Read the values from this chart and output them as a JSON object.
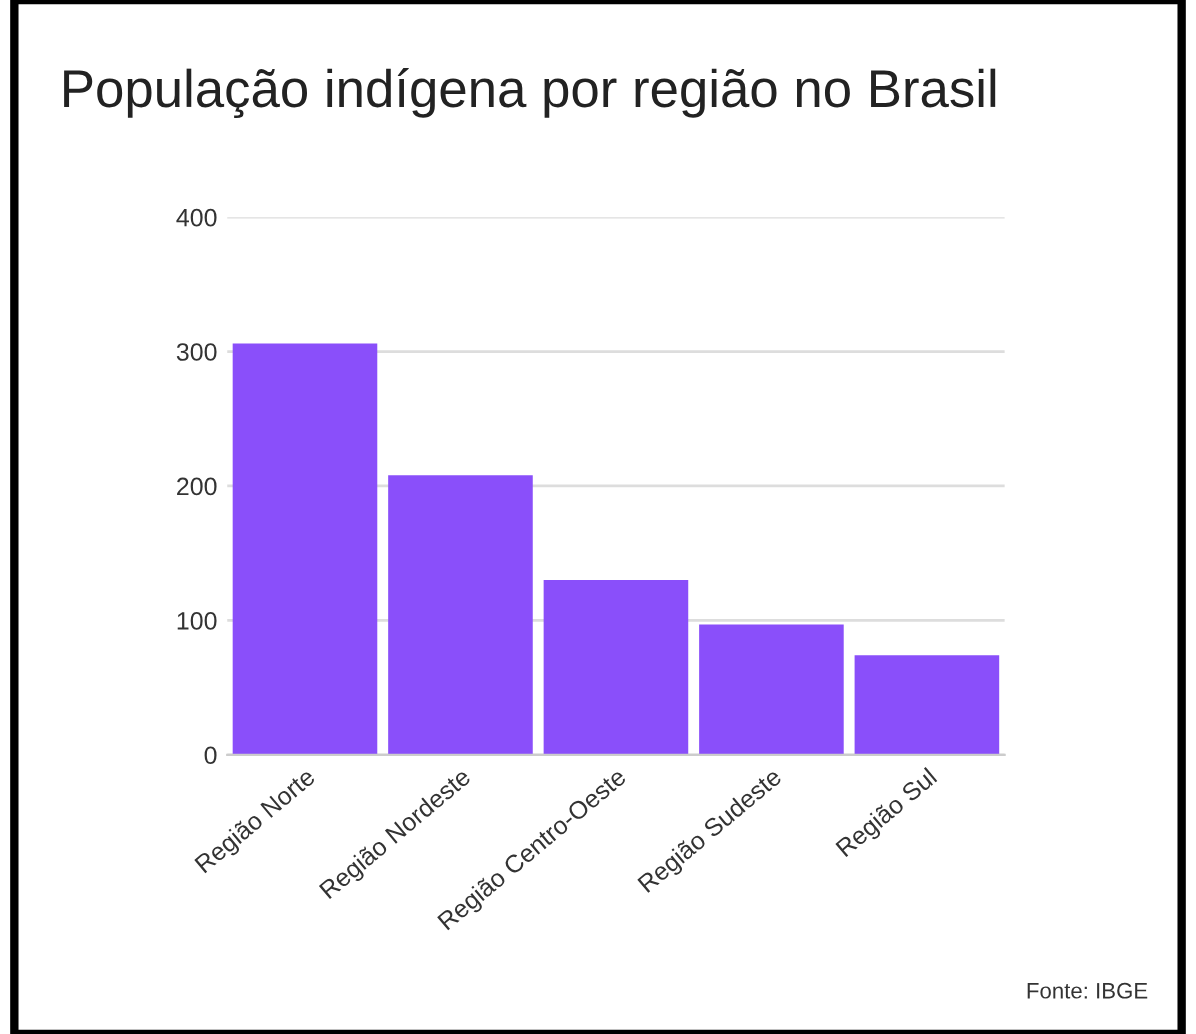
{
  "chart_data": {
    "type": "bar",
    "title": "População indígena por região no Brasil",
    "categories": [
      "Região Norte",
      "Região Nordeste",
      "Região Centro-Oeste",
      "Região Sudeste",
      "Região Sul"
    ],
    "values": [
      306,
      208,
      130,
      97,
      74
    ],
    "color": "#8a4ffa",
    "ylim": [
      0,
      400
    ],
    "yticks": [
      0,
      100,
      200,
      300,
      400
    ],
    "grid": "y",
    "annotations": [
      "Fonte: IBGE"
    ]
  }
}
